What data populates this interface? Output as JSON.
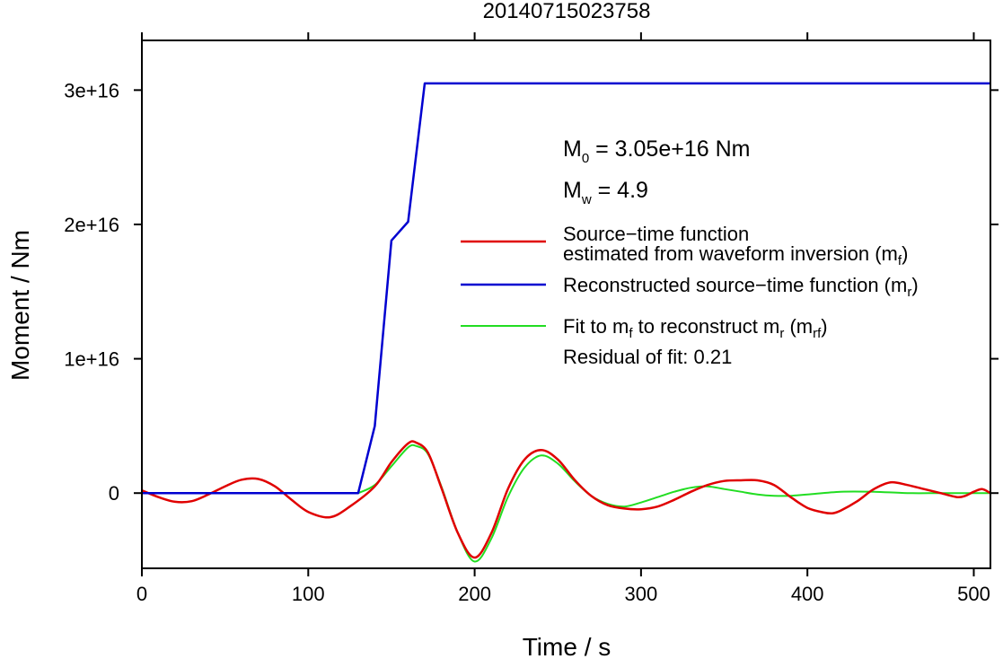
{
  "chart_data": {
    "type": "line",
    "title": "20140715023758",
    "xlabel": "Time / s",
    "ylabel": "Moment / Nm",
    "xlim": [
      0,
      510
    ],
    "ylim": [
      -5600000000000000.0,
      3.37e+16
    ],
    "x_ticks": [
      0,
      100,
      200,
      300,
      400,
      500
    ],
    "x_tick_labels": [
      "0",
      "100",
      "200",
      "300",
      "400",
      "500"
    ],
    "y_ticks": [
      0,
      1e+16,
      2e+16,
      3e+16
    ],
    "y_tick_labels": [
      "0",
      "1e+16",
      "2e+16",
      "3e+16"
    ],
    "grid": false,
    "legend_position": "top-right",
    "annotations": {
      "m0_main": "M",
      "m0_sub": "0",
      "m0_rest": " = 3.05e+16 Nm",
      "mw_main": "M",
      "mw_sub": "w",
      "mw_rest": " = 4.9",
      "residual": "Residual of fit: 0.21"
    },
    "legend": [
      {
        "color": "#e00000",
        "line1": "Source−time function",
        "line2_main": "estimated from waveform inversion (m",
        "line2_sub": "f",
        "line2_end": ")"
      },
      {
        "color": "#0000d0",
        "line1_main": "Reconstructed source−time function (m",
        "line1_sub": "r",
        "line1_end": ")"
      },
      {
        "color": "#22dd22",
        "t1": "Fit to m",
        "s1": "f",
        "t2": " to reconstruct m",
        "s2": "r",
        "t3": " (m",
        "s3": "rf",
        "t4": ")"
      }
    ],
    "series": [
      {
        "label": "mf",
        "color": "#e00000",
        "x": [
          0,
          10,
          20,
          30,
          40,
          50,
          60,
          70,
          80,
          90,
          100,
          113,
          125,
          140,
          150,
          160,
          165,
          172,
          180,
          190,
          200,
          210,
          220,
          230,
          240,
          250,
          260,
          270,
          280,
          290,
          300,
          310,
          320,
          330,
          340,
          350,
          360,
          370,
          380,
          390,
          400,
          410,
          415,
          420,
          430,
          440,
          450,
          460,
          470,
          480,
          490,
          495,
          500,
          505,
          510
        ],
        "y": [
          200000000000000.0,
          -300000000000000.0,
          -650000000000000.0,
          -600000000000000.0,
          -100000000000000.0,
          500000000000000.0,
          1000000000000000.0,
          1050000000000000.0,
          500000000000000.0,
          -500000000000000.0,
          -1400000000000000.0,
          -1800000000000000.0,
          -1000000000000000.0,
          500000000000000.0,
          2300000000000000.0,
          3700000000000000.0,
          3750000000000000.0,
          3000000000000000.0,
          400000000000000.0,
          -3000000000000000.0,
          -4800000000000000.0,
          -3000000000000000.0,
          300000000000000.0,
          2500000000000000.0,
          3200000000000000.0,
          2500000000000000.0,
          1000000000000000.0,
          -200000000000000.0,
          -900000000000000.0,
          -1150000000000000.0,
          -1200000000000000.0,
          -1000000000000000.0,
          -500000000000000.0,
          100000000000000.0,
          600000000000000.0,
          900000000000000.0,
          950000000000000.0,
          950000000000000.0,
          600000000000000.0,
          -300000000000000.0,
          -1100000000000000.0,
          -1450000000000000.0,
          -1500000000000000.0,
          -1300000000000000.0,
          -600000000000000.0,
          300000000000000.0,
          800000000000000.0,
          600000000000000.0,
          300000000000000.0,
          0,
          -300000000000000.0,
          -200000000000000.0,
          100000000000000.0,
          300000000000000.0,
          0
        ]
      },
      {
        "label": "mr",
        "color": "#0000d0",
        "x": [
          0,
          130,
          140,
          150,
          160,
          170,
          510
        ],
        "y": [
          0,
          0,
          5000000000000000.0,
          1.88e+16,
          2.02e+16,
          3.05e+16,
          3.05e+16
        ]
      },
      {
        "label": "mrf",
        "color": "#22dd22",
        "x": [
          130,
          140,
          150,
          160,
          165,
          172,
          180,
          190,
          200,
          210,
          220,
          230,
          240,
          250,
          260,
          270,
          280,
          290,
          300,
          310,
          320,
          330,
          340,
          350,
          360,
          370,
          380,
          390,
          400,
          420,
          440,
          460,
          480,
          500,
          510
        ],
        "y": [
          0,
          600000000000000.0,
          2000000000000000.0,
          3400000000000000.0,
          3500000000000000.0,
          2900000000000000.0,
          500000000000000.0,
          -3000000000000000.0,
          -5100000000000000.0,
          -3400000000000000.0,
          -300000000000000.0,
          1900000000000000.0,
          2800000000000000.0,
          2200000000000000.0,
          900000000000000.0,
          -200000000000000.0,
          -800000000000000.0,
          -1000000000000000.0,
          -700000000000000.0,
          -300000000000000.0,
          100000000000000.0,
          400000000000000.0,
          500000000000000.0,
          300000000000000.0,
          100000000000000.0,
          -100000000000000.0,
          -200000000000000.0,
          -200000000000000.0,
          -100000000000000.0,
          100000000000000.0,
          100000000000000.0,
          0,
          0,
          0,
          0
        ]
      }
    ]
  }
}
